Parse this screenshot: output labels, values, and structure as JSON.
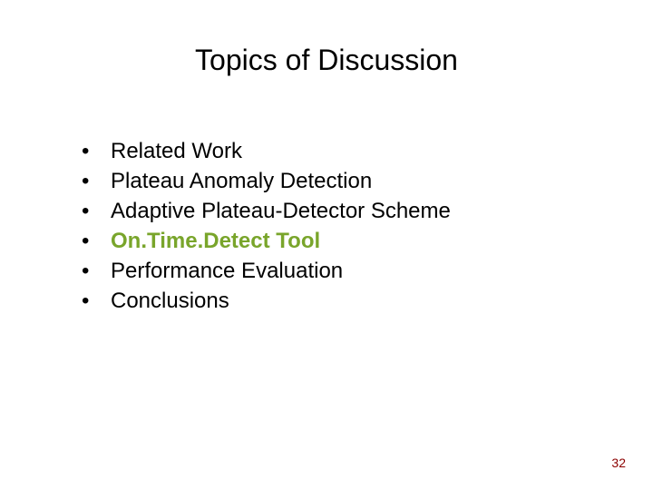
{
  "slide": {
    "title": "Topics of Discussion",
    "title_color": "#000000",
    "title_fontsize": 32,
    "bullet_fontsize": 24,
    "bullet_line_height": 33,
    "highlight_color": "#79a52b",
    "text_color": "#000000",
    "background_color": "#ffffff",
    "items": [
      {
        "text": "Related Work",
        "highlight": false
      },
      {
        "text": "Plateau Anomaly Detection",
        "highlight": false
      },
      {
        "text": "Adaptive Plateau-Detector Scheme",
        "highlight": false
      },
      {
        "text": "On.Time.Detect Tool",
        "highlight": true
      },
      {
        "text": "Performance Evaluation",
        "highlight": false
      },
      {
        "text": "Conclusions",
        "highlight": false
      }
    ],
    "page_number": "32",
    "page_number_color": "#8b0000"
  }
}
